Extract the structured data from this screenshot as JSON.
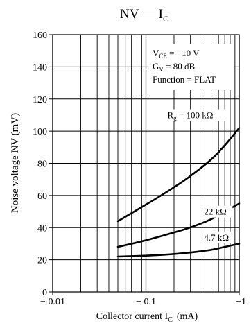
{
  "chart_data": {
    "type": "line",
    "title": "NV — I",
    "title_sub": "C",
    "xlabel": "Collector current  I",
    "xlabel_sub": "C",
    "xlabel_unit": "(mA)",
    "ylabel": "Noise voltage  NV  (mV)",
    "xscale": "log",
    "xlim": [
      -0.01,
      -1
    ],
    "ylim": [
      0,
      160
    ],
    "grid": true,
    "xticks": [
      {
        "value": -0.01,
        "label": "− 0.01"
      },
      {
        "value": -0.1,
        "label": "− 0.1"
      },
      {
        "value": -1,
        "label": "−1"
      }
    ],
    "yticks": [
      {
        "value": 0,
        "label": "0"
      },
      {
        "value": 20,
        "label": "20"
      },
      {
        "value": 40,
        "label": "40"
      },
      {
        "value": 60,
        "label": "60"
      },
      {
        "value": 80,
        "label": "80"
      },
      {
        "value": 100,
        "label": "100"
      },
      {
        "value": 120,
        "label": "120"
      },
      {
        "value": 140,
        "label": "140"
      },
      {
        "value": 160,
        "label": "160"
      }
    ],
    "conditions": [
      {
        "main": "V",
        "sub": "CE",
        "rest": " = −10 V"
      },
      {
        "main": "G",
        "sub": "V",
        "rest": " = 80 dB"
      },
      {
        "main": "Function = FLAT",
        "sub": "",
        "rest": ""
      }
    ],
    "series": [
      {
        "name": "R_g = 100 kΩ",
        "label_main": "R",
        "label_sub": "g",
        "label_rest": " = 100 kΩ",
        "x": [
          -0.05,
          -0.08,
          -0.12,
          -0.2,
          -0.3,
          -0.5,
          -0.7,
          -1.0
        ],
        "y": [
          44,
          51,
          57,
          65,
          72,
          82,
          91,
          102
        ]
      },
      {
        "name": "22 kΩ",
        "label_main": "22 kΩ",
        "label_sub": "",
        "label_rest": "",
        "x": [
          -0.05,
          -0.1,
          -0.2,
          -0.3,
          -0.5,
          -0.7,
          -1.0
        ],
        "y": [
          28,
          32,
          37,
          40,
          45,
          50,
          55
        ]
      },
      {
        "name": "4.7 kΩ",
        "label_main": "4.7 kΩ",
        "label_sub": "",
        "label_rest": "",
        "x": [
          -0.05,
          -0.1,
          -0.2,
          -0.3,
          -0.5,
          -0.7,
          -1.0
        ],
        "y": [
          22,
          22.5,
          23.5,
          24.5,
          26,
          28,
          30
        ]
      }
    ]
  }
}
